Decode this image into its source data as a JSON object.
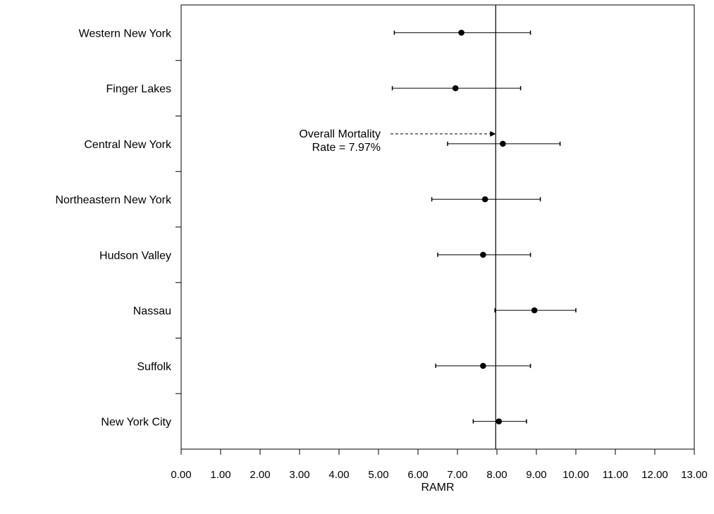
{
  "chart_data": {
    "type": "scatter",
    "title": "",
    "xlabel": "RAMR",
    "ylabel": "",
    "xlim": [
      0,
      13
    ],
    "x_ticks": [
      "0.00",
      "1.00",
      "2.00",
      "3.00",
      "4.00",
      "5.00",
      "6.00",
      "7.00",
      "8.00",
      "9.00",
      "10.00",
      "11.00",
      "12.00",
      "13.00"
    ],
    "grid": false,
    "reference_line": {
      "x": 7.97,
      "label_line1": "Overall Mortality",
      "label_line2": "Rate = 7.97%"
    },
    "categories": [
      "Western New York",
      "Finger Lakes",
      "Central New York",
      "Northeastern New York",
      "Hudson Valley",
      "Nassau",
      "Suffolk",
      "New York City"
    ],
    "points": [
      {
        "region": "Western New York",
        "value": 7.1,
        "lower": 5.4,
        "upper": 8.85
      },
      {
        "region": "Finger Lakes",
        "value": 6.95,
        "lower": 5.35,
        "upper": 8.6
      },
      {
        "region": "Central New York",
        "value": 8.15,
        "lower": 6.75,
        "upper": 9.6
      },
      {
        "region": "Northeastern New York",
        "value": 7.7,
        "lower": 6.35,
        "upper": 9.1
      },
      {
        "region": "Hudson Valley",
        "value": 7.65,
        "lower": 6.5,
        "upper": 8.85
      },
      {
        "region": "Nassau",
        "value": 8.95,
        "lower": 7.95,
        "upper": 10.0
      },
      {
        "region": "Suffolk",
        "value": 7.65,
        "lower": 6.45,
        "upper": 8.85
      },
      {
        "region": "New York City",
        "value": 8.05,
        "lower": 7.4,
        "upper": 8.75
      }
    ]
  }
}
